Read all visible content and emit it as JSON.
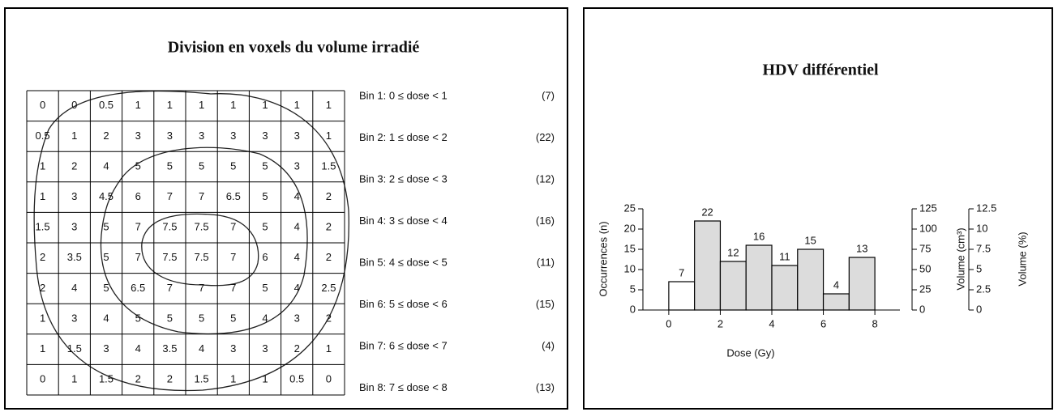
{
  "grid": {
    "title": "Division en voxels du volume irradié",
    "rows": [
      [
        0,
        0,
        0.5,
        1,
        1,
        1,
        1,
        1,
        1,
        1
      ],
      [
        0.5,
        1,
        2,
        3,
        3,
        3,
        3,
        3,
        3,
        1
      ],
      [
        1,
        2,
        4,
        5,
        5,
        5,
        5,
        5,
        3,
        1.5
      ],
      [
        1,
        3,
        4.5,
        6,
        7,
        7,
        6.5,
        5,
        4,
        2
      ],
      [
        1.5,
        3,
        5,
        7,
        7.5,
        7.5,
        7,
        5,
        4,
        2
      ],
      [
        2,
        3.5,
        5,
        7,
        7.5,
        7.5,
        7,
        6,
        4,
        2
      ],
      [
        2,
        4,
        5,
        6.5,
        7,
        7,
        7,
        5,
        4,
        2.5
      ],
      [
        1,
        3,
        4,
        5,
        5,
        5,
        5,
        4,
        3,
        2
      ],
      [
        1,
        1.5,
        3,
        4,
        3.5,
        4,
        3,
        3,
        2,
        1
      ],
      [
        0,
        1,
        1.5,
        2,
        2,
        1.5,
        1,
        1,
        0.5,
        0
      ]
    ],
    "bins": [
      {
        "label": "Bin 1:  0 ≤ dose < 1",
        "count": "(7)"
      },
      {
        "label": "Bin 2:  1 ≤ dose < 2",
        "count": "(22)"
      },
      {
        "label": "Bin 3:  2 ≤ dose < 3",
        "count": "(12)"
      },
      {
        "label": "Bin 4:  3 ≤ dose < 4",
        "count": "(16)"
      },
      {
        "label": "Bin 5:  4 ≤ dose < 5",
        "count": "(11)"
      },
      {
        "label": "Bin 6:  5 ≤ dose < 6",
        "count": "(15)"
      },
      {
        "label": "Bin 7:  6 ≤ dose < 7",
        "count": "(4)"
      },
      {
        "label": "Bin 8:  7 ≤ dose < 8",
        "count": "(13)"
      }
    ]
  },
  "chart_data": {
    "type": "histogram",
    "title": "HDV différentiel",
    "x_label": "Dose (Gy)",
    "y_label": "Occurrences (n)",
    "y2_label": "Volume (cm³)",
    "y3_label": "Volume (%)",
    "bins": [
      0,
      1,
      2,
      3,
      4,
      5,
      6,
      7,
      8
    ],
    "values": [
      7,
      22,
      12,
      16,
      11,
      15,
      4,
      13
    ],
    "colors": [
      "#ffffff",
      "#dcdcdc",
      "#dcdcdc",
      "#dcdcdc",
      "#dcdcdc",
      "#dcdcdc",
      "#dcdcdc",
      "#dcdcdc"
    ],
    "xlim": [
      -0.5,
      8.5
    ],
    "xticks": [
      0,
      2,
      4,
      6,
      8
    ],
    "ylim": [
      0,
      25
    ],
    "yticks": [
      0,
      5,
      10,
      15,
      20,
      25
    ],
    "y2lim": [
      0,
      125
    ],
    "y2ticks": [
      0,
      25,
      50,
      75,
      100,
      125
    ],
    "y3lim": [
      0,
      12.5
    ],
    "y3ticks": [
      0,
      2.5,
      5,
      7.5,
      10,
      12.5
    ]
  }
}
